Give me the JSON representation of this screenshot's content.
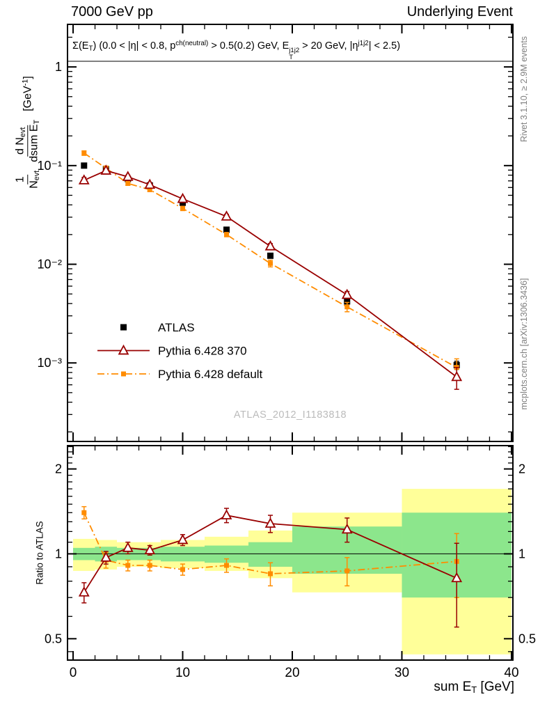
{
  "header": {
    "left": "7000 GeV pp",
    "right": "Underlying Event"
  },
  "side_texts": {
    "top_right": "Rivet 3.1.10, ≥ 2.9M events",
    "bottom_right": "mcplots.cern.ch [arXiv:1306.3436]"
  },
  "watermark": "ATLAS_2012_I1183818",
  "annotation": {
    "a1": "Σ(E",
    "a1_sub": "T",
    "a2": ") (0.0 < |η| < 0.8, p",
    "a2_sup": "ch(neutral)",
    "a3": " > 0.5(0.2) GeV, E",
    "a3_sup": "j1j2",
    "a3_sub": "T",
    "a4": " > 20 GeV, |η",
    "a4_sup": "j1j2",
    "a5": "| < 2.5)"
  },
  "axis_labels": {
    "x": {
      "t1": "sum E",
      "t1_sub": "T",
      "t2": " [GeV]"
    },
    "y_ratio": "Ratio to ATLAS",
    "y_main": {
      "f1_num": "1",
      "f1_den": "N",
      "f1_den_sub": "evt",
      "f2_num": "d N",
      "f2_num_sub": "evt",
      "f2_den": "dsum E",
      "f2_den_sub": "T",
      "u1": "[GeV",
      "u_sup": "-1",
      "u2": "]"
    }
  },
  "colors": {
    "atlas": "#000000",
    "pythia370": "#990000",
    "pythia_default": "#ff8c00",
    "band_yellow": "#ffff99",
    "band_green": "#8ce68c",
    "watermark": "#bbbbbb",
    "side_text": "#808080"
  },
  "chart_data": [
    {
      "type": "line",
      "panel": "main",
      "title": "Σ(E_T) (0.0 < |η| < 0.8, p^ch(neutral) > 0.5(0.2) GeV, E_T^j1j2 > 20 GeV, |η^j1j2| < 2.5)",
      "xlabel": "sum E_T [GeV]",
      "ylabel": "1/N_evt dN_evt/dsum E_T [GeV^-1]",
      "yscale": "log",
      "xlim": [
        -0.51,
        40.13
      ],
      "ylim": [
        0.00016,
        2.7
      ],
      "x": [
        1,
        3,
        5,
        7,
        10,
        14,
        18,
        25,
        35
      ],
      "series": [
        {
          "name": "ATLAS",
          "color": "#000000",
          "marker": "square",
          "marker_size": 9,
          "line": "none",
          "values": [
            0.1,
            0.092,
            0.073,
            0.063,
            0.042,
            0.0224,
            0.0122,
            0.0042,
            0.00095
          ],
          "yerr": [
            0.005,
            0.004,
            0.003,
            0.0025,
            0.0015,
            0.0009,
            0.0006,
            0.00025,
            9e-05
          ]
        },
        {
          "name": "Pythia 6.428 370",
          "color": "#990000",
          "marker": "triangle-open",
          "marker_size": 11,
          "line": "solid",
          "values": [
            0.071,
            0.089,
            0.077,
            0.064,
            0.046,
            0.0305,
            0.0152,
            0.0049,
            0.00072
          ],
          "yerr": [
            0.005,
            0.004,
            0.003,
            0.0025,
            0.002,
            0.0015,
            0.001,
            0.0004,
            0.00018
          ]
        },
        {
          "name": "Pythia 6.428 default",
          "color": "#ff8c00",
          "marker": "square",
          "marker_size": 7,
          "line": "dashdot",
          "values": [
            0.134,
            0.094,
            0.066,
            0.057,
            0.0368,
            0.02,
            0.0102,
            0.0037,
            0.0009
          ],
          "yerr": [
            0.007,
            0.005,
            0.003,
            0.0025,
            0.0018,
            0.001,
            0.0008,
            0.0004,
            0.0002
          ]
        }
      ],
      "xticks": [
        {
          "v": 0,
          "label": "0"
        },
        {
          "v": 10,
          "label": "10"
        },
        {
          "v": 20,
          "label": "20"
        },
        {
          "v": 30,
          "label": "30"
        },
        {
          "v": 40,
          "label": "40"
        }
      ],
      "yticks": [
        {
          "v": 1,
          "label": "1"
        },
        {
          "v": 0.1,
          "label": "10⁻¹"
        },
        {
          "v": 0.01,
          "label": "10⁻²"
        },
        {
          "v": 0.001,
          "label": "10⁻³"
        }
      ]
    },
    {
      "type": "line",
      "panel": "ratio",
      "ylabel": "Ratio to ATLAS",
      "yscale": "log",
      "xlim": [
        -0.51,
        40.13
      ],
      "ylim": [
        0.42,
        2.42
      ],
      "ref_line": 1,
      "x": [
        1,
        3,
        5,
        7,
        10,
        14,
        18,
        25,
        35
      ],
      "bands": {
        "edges": [
          0,
          2,
          4,
          6,
          8,
          12,
          16,
          20,
          30,
          40
        ],
        "yellow": [
          [
            0.87,
            1.13
          ],
          [
            0.88,
            1.12
          ],
          [
            0.9,
            1.1
          ],
          [
            0.9,
            1.1
          ],
          [
            0.89,
            1.12
          ],
          [
            0.87,
            1.15
          ],
          [
            0.82,
            1.21
          ],
          [
            0.73,
            1.4
          ],
          [
            0.44,
            1.7
          ]
        ],
        "green": [
          [
            0.95,
            1.05
          ],
          [
            0.94,
            1.06
          ],
          [
            0.95,
            1.05
          ],
          [
            0.95,
            1.05
          ],
          [
            0.94,
            1.06
          ],
          [
            0.93,
            1.07
          ],
          [
            0.9,
            1.1
          ],
          [
            0.85,
            1.25
          ],
          [
            0.7,
            1.4
          ]
        ]
      },
      "series": [
        {
          "name": "Pythia 6.428 370",
          "color": "#990000",
          "marker": "triangle-open",
          "marker_size": 11,
          "line": "solid",
          "values": [
            0.73,
            0.97,
            1.05,
            1.03,
            1.12,
            1.37,
            1.28,
            1.22,
            0.82
          ],
          "yerr": [
            0.06,
            0.05,
            0.05,
            0.04,
            0.05,
            0.08,
            0.09,
            0.12,
            0.27
          ]
        },
        {
          "name": "Pythia 6.428 default",
          "color": "#ff8c00",
          "marker": "square",
          "marker_size": 7,
          "line": "dashdot",
          "values": [
            1.4,
            0.95,
            0.91,
            0.91,
            0.88,
            0.91,
            0.85,
            0.87,
            0.94
          ],
          "yerr": [
            0.07,
            0.06,
            0.04,
            0.04,
            0.04,
            0.05,
            0.08,
            0.1,
            0.24
          ]
        }
      ],
      "yticks": [
        {
          "v": 2,
          "label": "2"
        },
        {
          "v": 1,
          "label": "1"
        },
        {
          "v": 0.5,
          "label": "0.5"
        }
      ]
    }
  ]
}
